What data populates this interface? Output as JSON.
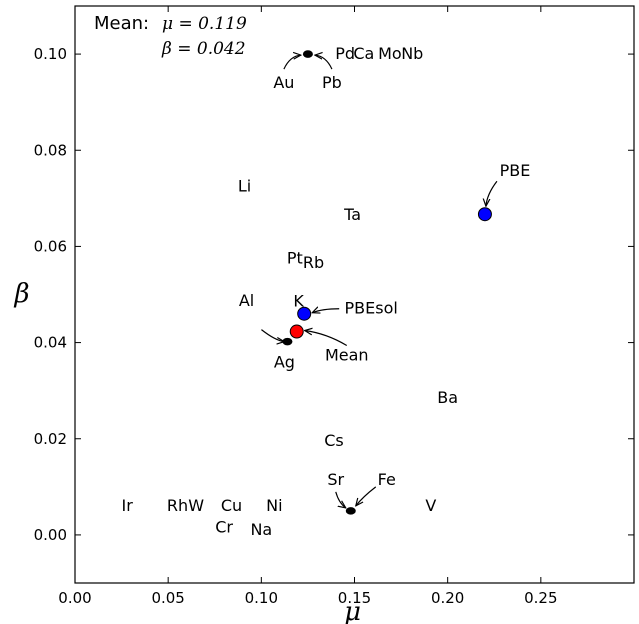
{
  "chart_data": {
    "type": "scatter",
    "xlabel": "μ",
    "ylabel": "β",
    "xlim": [
      0.0,
      0.3
    ],
    "ylim": [
      -0.01,
      0.11
    ],
    "xticks": [
      "0.00",
      "0.05",
      "0.10",
      "0.15",
      "0.20",
      "0.25"
    ],
    "yticks": [
      "0.00",
      "0.02",
      "0.04",
      "0.06",
      "0.08",
      "0.10"
    ],
    "grid": false,
    "mean_box": {
      "prefix": "Mean:",
      "mu_text": "μ = 0.119",
      "beta_text": "β = 0.042"
    },
    "elements": [
      {
        "label": "Au",
        "x": 0.125,
        "y": 0.1
      },
      {
        "label": "Pb",
        "x": 0.125,
        "y": 0.1
      },
      {
        "label": "Pd",
        "x": 0.145,
        "y": 0.1
      },
      {
        "label": "Ca",
        "x": 0.155,
        "y": 0.1
      },
      {
        "label": "Mo",
        "x": 0.169,
        "y": 0.1
      },
      {
        "label": "Nb",
        "x": 0.181,
        "y": 0.1
      },
      {
        "label": "Li",
        "x": 0.091,
        "y": 0.0725
      },
      {
        "label": "Ta",
        "x": 0.149,
        "y": 0.0665
      },
      {
        "label": "Pt",
        "x": 0.118,
        "y": 0.0575
      },
      {
        "label": "Rb",
        "x": 0.128,
        "y": 0.0565
      },
      {
        "label": "K",
        "x": 0.12,
        "y": 0.0485
      },
      {
        "label": "Al",
        "x": 0.113,
        "y": 0.0445
      },
      {
        "label": "Ag",
        "x": 0.114,
        "y": 0.0402
      },
      {
        "label": "Ba",
        "x": 0.2,
        "y": 0.0285
      },
      {
        "label": "Cs",
        "x": 0.139,
        "y": 0.0195
      },
      {
        "label": "Sr",
        "x": 0.148,
        "y": 0.005
      },
      {
        "label": "Fe",
        "x": 0.148,
        "y": 0.005
      },
      {
        "label": "V",
        "x": 0.191,
        "y": 0.006
      },
      {
        "label": "Ir",
        "x": 0.028,
        "y": 0.006
      },
      {
        "label": "Rh",
        "x": 0.055,
        "y": 0.006
      },
      {
        "label": "W",
        "x": 0.065,
        "y": 0.006
      },
      {
        "label": "Cu",
        "x": 0.084,
        "y": 0.006
      },
      {
        "label": "Ni",
        "x": 0.107,
        "y": 0.006
      },
      {
        "label": "Cr",
        "x": 0.08,
        "y": 0.0015
      },
      {
        "label": "Na",
        "x": 0.1,
        "y": 0.001
      }
    ],
    "functionals": [
      {
        "label": "PBE",
        "x": 0.22,
        "y": 0.0667,
        "color": "#0000ff"
      },
      {
        "label": "PBEsol",
        "x": 0.123,
        "y": 0.046,
        "color": "#0000ff"
      },
      {
        "label": "Mean",
        "x": 0.119,
        "y": 0.0423,
        "color": "#ff0000"
      }
    ],
    "small_markers": [
      {
        "x": 0.125,
        "y": 0.1
      },
      {
        "x": 0.114,
        "y": 0.0402
      },
      {
        "x": 0.148,
        "y": 0.005
      }
    ],
    "colors": {
      "pbe": "#0000ff",
      "pbesol": "#0000ff",
      "mean": "#ff0000",
      "marker": "#000000"
    }
  }
}
